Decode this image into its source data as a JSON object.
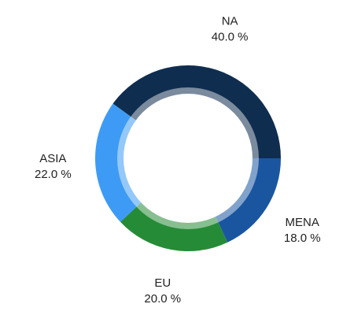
{
  "chart_data": {
    "type": "donut",
    "categories": [
      "NA",
      "MENA",
      "EU",
      "ASIA"
    ],
    "values": [
      40,
      18,
      20,
      22
    ],
    "value_labels": [
      "40.0 %",
      "18.0 %",
      "20.0 %",
      "22.0 %"
    ],
    "colors": [
      "#0f2d4f",
      "#1a56a0",
      "#268b37",
      "#3d9bf5"
    ]
  }
}
